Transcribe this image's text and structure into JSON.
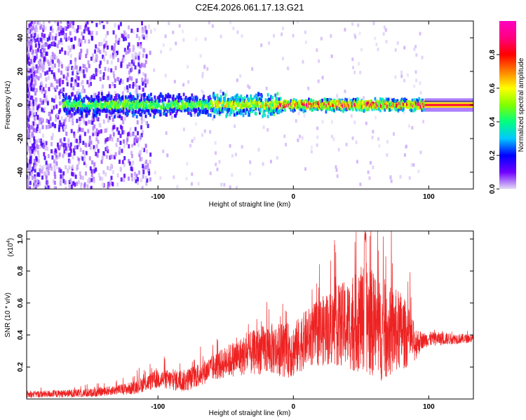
{
  "title": "C2E4.2026.061.17.13.G21",
  "chart_data": [
    {
      "type": "heatmap",
      "name": "spectrogram",
      "xlabel": "Height of straight line (km)",
      "ylabel": "Frequency (Hz)",
      "xlim": [
        -197,
        133
      ],
      "ylim": [
        -50,
        50
      ],
      "xticks": [
        {
          "v": -100,
          "label": "-100"
        },
        {
          "v": 0,
          "label": "0"
        },
        {
          "v": 100,
          "label": "100"
        }
      ],
      "yticks": [
        {
          "v": -40,
          "label": "-40"
        },
        {
          "v": -20,
          "label": "-20"
        },
        {
          "v": 0,
          "label": "0"
        },
        {
          "v": 20,
          "label": "20"
        },
        {
          "v": 40,
          "label": "40"
        }
      ],
      "ridge": {
        "frequency_hz": 0,
        "noise_below_km": -120,
        "strong_above_km": -10,
        "constant_from_km": 97
      },
      "colorbar": {
        "label": "Normalized spectral amplitude",
        "range": [
          0,
          1
        ],
        "ticks": [
          {
            "v": 0.0,
            "label": "0.0"
          },
          {
            "v": 0.2,
            "label": "0.2"
          },
          {
            "v": 0.4,
            "label": "0.4"
          },
          {
            "v": 0.6,
            "label": "0.6"
          },
          {
            "v": 0.8,
            "label": "0.8"
          }
        ],
        "colors": [
          "#e4dcf4",
          "#7000ff",
          "#0000ff",
          "#00c8ff",
          "#00ff80",
          "#80ff00",
          "#ffff00",
          "#ff8000",
          "#ff0000",
          "#ff0080",
          "#ff00c0"
        ]
      }
    },
    {
      "type": "line",
      "name": "snr",
      "xlabel": "Height of straight line (km)",
      "ylabel": "SNR (10 * v/v)",
      "y_multiplier_label": "(x10",
      "y_multiplier_exp": "4",
      "line_color": "#ee2222",
      "xlim": [
        -197,
        133
      ],
      "ylim": [
        0,
        1.05
      ],
      "xticks": [
        {
          "v": -100,
          "label": "-100"
        },
        {
          "v": 0,
          "label": "0"
        },
        {
          "v": 100,
          "label": "100"
        }
      ],
      "yticks": [
        {
          "v": 0.2,
          "label": "0.2"
        },
        {
          "v": 0.4,
          "label": "0.4"
        },
        {
          "v": 0.6,
          "label": "0.6"
        },
        {
          "v": 0.8,
          "label": "0.8"
        },
        {
          "v": 1.0,
          "label": "1.0"
        }
      ],
      "envelope": [
        {
          "x": -197,
          "y": 0.03
        },
        {
          "x": -150,
          "y": 0.04
        },
        {
          "x": -120,
          "y": 0.07
        },
        {
          "x": -100,
          "y": 0.13
        },
        {
          "x": -80,
          "y": 0.12
        },
        {
          "x": -60,
          "y": 0.2
        },
        {
          "x": -45,
          "y": 0.26
        },
        {
          "x": -20,
          "y": 0.33
        },
        {
          "x": 0,
          "y": 0.32
        },
        {
          "x": 10,
          "y": 0.4
        },
        {
          "x": 30,
          "y": 0.48
        },
        {
          "x": 45,
          "y": 0.5
        },
        {
          "x": 53,
          "y": 0.55
        },
        {
          "x": 65,
          "y": 0.45
        },
        {
          "x": 80,
          "y": 0.45
        },
        {
          "x": 90,
          "y": 0.36
        },
        {
          "x": 100,
          "y": 0.38
        },
        {
          "x": 133,
          "y": 0.38
        }
      ],
      "spread": [
        {
          "x": -197,
          "y": 0.02
        },
        {
          "x": -130,
          "y": 0.03
        },
        {
          "x": -100,
          "y": 0.06
        },
        {
          "x": -60,
          "y": 0.08
        },
        {
          "x": -40,
          "y": 0.12
        },
        {
          "x": -20,
          "y": 0.16
        },
        {
          "x": 10,
          "y": 0.18
        },
        {
          "x": 40,
          "y": 0.28
        },
        {
          "x": 55,
          "y": 0.35
        },
        {
          "x": 80,
          "y": 0.25
        },
        {
          "x": 95,
          "y": 0.05
        },
        {
          "x": 133,
          "y": 0.025
        }
      ],
      "peak": {
        "x": 53,
        "y": 1.05
      }
    }
  ]
}
